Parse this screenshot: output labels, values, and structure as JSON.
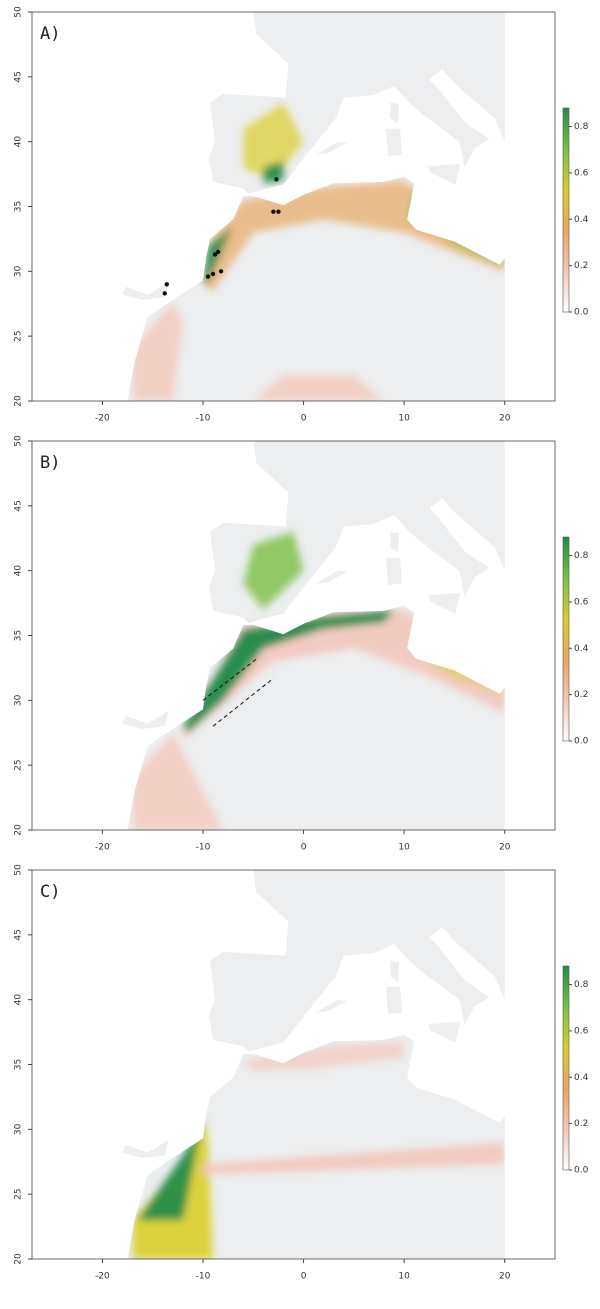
{
  "chart_data": [
    {
      "type": "map",
      "panel_label": "A)",
      "xlim": [
        -27,
        25
      ],
      "ylim": [
        20,
        50
      ],
      "xticks": [
        -20,
        -10,
        0,
        10,
        20
      ],
      "yticks": [
        20,
        25,
        30,
        35,
        40,
        45,
        50
      ],
      "colorbar_lim": [
        0,
        0.88
      ],
      "colorbar_ticks": [
        {
          "value": 0,
          "label": "0.0"
        },
        0.2,
        0.4,
        0.6,
        0.8
      ],
      "colorbar_colors": [
        "#ffffff",
        "#f2c8bc",
        "#e8a860",
        "#d8cf28",
        "#7cbf45",
        "#1f8a48"
      ],
      "points": {
        "x": [
          -2.7,
          -3.0,
          -2.5,
          -8.5,
          -8.8,
          -9.5,
          -9.0,
          -8.2,
          -13.8,
          -13.6
        ],
        "y": [
          37.1,
          34.6,
          34.6,
          31.5,
          31.3,
          29.6,
          29.8,
          30.0,
          28.3,
          29.0
        ],
        "color": "#111111"
      }
    },
    {
      "type": "map",
      "panel_label": "B)",
      "xlim": [
        -27,
        25
      ],
      "ylim": [
        20,
        50
      ],
      "xticks": [
        -20,
        -10,
        0,
        10,
        20
      ],
      "yticks": [
        20,
        25,
        30,
        35,
        40,
        45,
        50
      ],
      "colorbar_lim": [
        0,
        0.88
      ],
      "colorbar_ticks": [
        {
          "value": 0,
          "label": "0.0"
        },
        0.2,
        0.4,
        0.6,
        0.8
      ],
      "colorbar_colors": [
        "#ffffff",
        "#f2c8bc",
        "#e8a860",
        "#d8cf28",
        "#7cbf45",
        "#1f8a48"
      ]
    },
    {
      "type": "map",
      "panel_label": "C)",
      "xlim": [
        -27,
        25
      ],
      "ylim": [
        20,
        50
      ],
      "xticks": [
        -20,
        -10,
        0,
        10,
        20
      ],
      "yticks": [
        20,
        25,
        30,
        35,
        40,
        45,
        50
      ],
      "colorbar_lim": [
        0,
        0.88
      ],
      "colorbar_ticks": [
        {
          "value": 0,
          "label": "0.0"
        },
        0.2,
        0.4,
        0.6,
        0.8
      ],
      "colorbar_colors": [
        "#ffffff",
        "#f2c8bc",
        "#e8a860",
        "#d8cf28",
        "#7cbf45",
        "#1f8a48"
      ]
    }
  ]
}
